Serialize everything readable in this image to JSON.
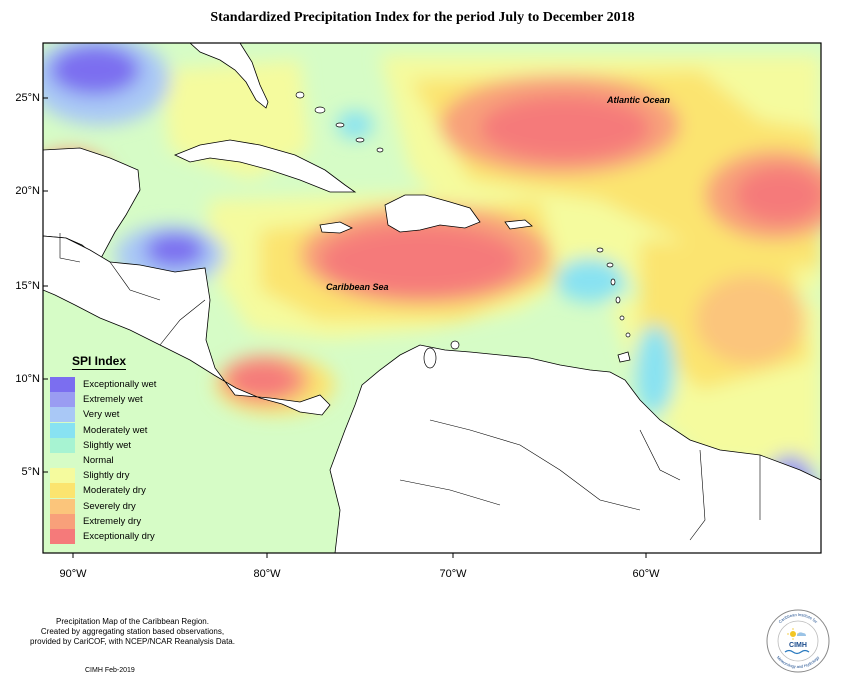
{
  "title": "Standardized Precipitation Index for the period July to December 2018",
  "map": {
    "ocean_labels": [
      "Atlantic Ocean",
      "Caribbean Sea"
    ],
    "lat_labels": [
      "25°N",
      "20°N",
      "15°N",
      "10°N",
      "5°N"
    ],
    "lon_labels": [
      "90°W",
      "80°W",
      "70°W",
      "60°W"
    ]
  },
  "legend": {
    "title": "SPI Index",
    "items": [
      {
        "label": "Exceptionally wet",
        "color": "#7b6ef0"
      },
      {
        "label": "Extremely wet",
        "color": "#9a9cf2"
      },
      {
        "label": "Very wet",
        "color": "#a9c8f6"
      },
      {
        "label": "Moderately wet",
        "color": "#88e2f2"
      },
      {
        "label": "Slightly wet",
        "color": "#a7f3d2"
      },
      {
        "label": "Normal",
        "color": "#d6fcc6"
      },
      {
        "label": "Slightly dry",
        "color": "#f5fb9e"
      },
      {
        "label": "Moderately dry",
        "color": "#fbe46f"
      },
      {
        "label": "Severely dry",
        "color": "#fbc57b"
      },
      {
        "label": "Extremely dry",
        "color": "#f8a07a"
      },
      {
        "label": "Exceptionally dry",
        "color": "#f57a7a"
      }
    ]
  },
  "footnote": {
    "lines": [
      "Precipitation Map of the Caribbean Region.",
      "Created by aggregating station based observations,",
      "provided by CariCOF, with NCEP/NCAR Reanalysis Data."
    ],
    "credit": "CIMH Feb-2019"
  },
  "logo": {
    "text": "CIMH",
    "ring_top": "Caribbean Institute for",
    "ring_bottom": "Meteorology and Hydrology"
  }
}
